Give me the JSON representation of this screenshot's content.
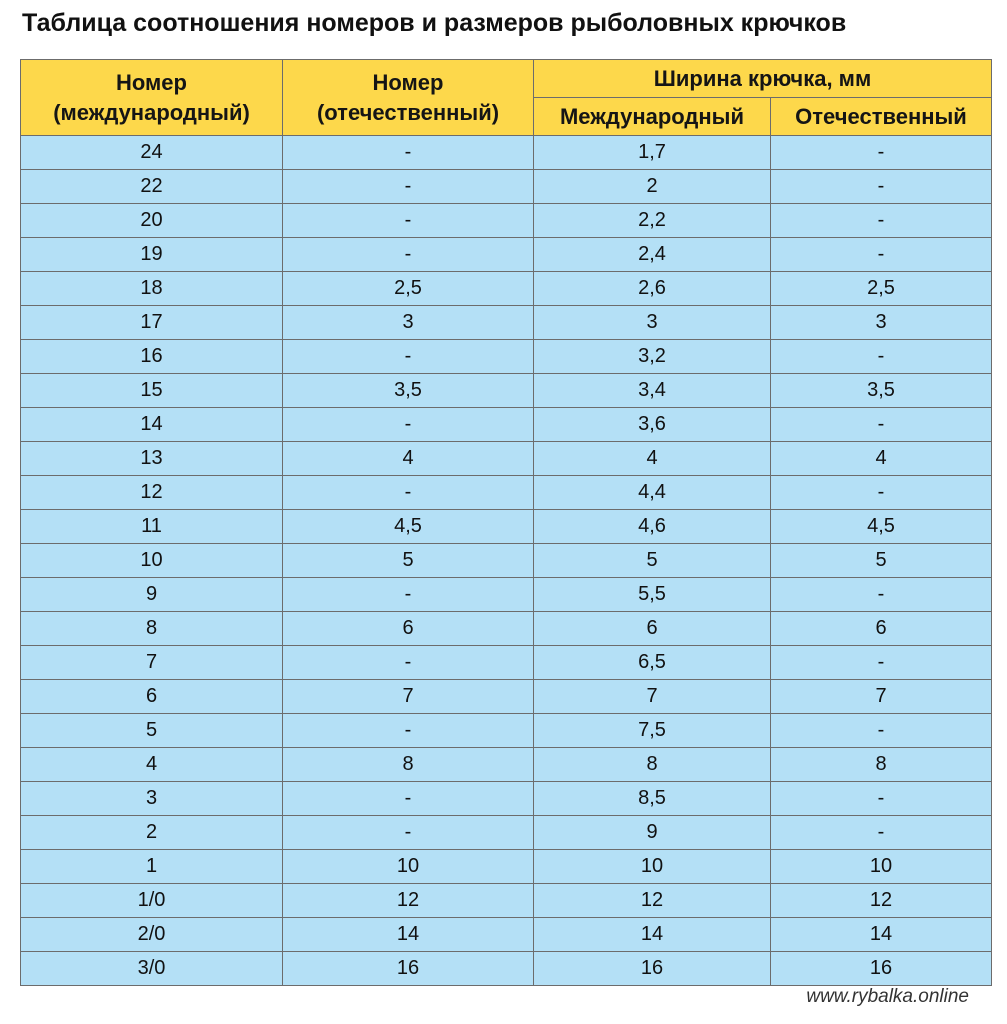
{
  "title": "Таблица соотношения номеров и размеров рыболовных крючков",
  "table": {
    "headers": {
      "col1_line1": "Номер",
      "col1_line2": "(международный)",
      "col2_line1": "Номер",
      "col2_line2": "(отечественный)",
      "group": "Ширина крючка, мм",
      "sub1": "Международный",
      "sub2": "Отечественный"
    },
    "rows": [
      [
        "24",
        "-",
        "1,7",
        "-"
      ],
      [
        "22",
        "-",
        "2",
        "-"
      ],
      [
        "20",
        "-",
        "2,2",
        "-"
      ],
      [
        "19",
        "-",
        "2,4",
        "-"
      ],
      [
        "18",
        "2,5",
        "2,6",
        "2,5"
      ],
      [
        "17",
        "3",
        "3",
        "3"
      ],
      [
        "16",
        "-",
        "3,2",
        "-"
      ],
      [
        "15",
        "3,5",
        "3,4",
        "3,5"
      ],
      [
        "14",
        "-",
        "3,6",
        "-"
      ],
      [
        "13",
        "4",
        "4",
        "4"
      ],
      [
        "12",
        "-",
        "4,4",
        "-"
      ],
      [
        "11",
        "4,5",
        "4,6",
        "4,5"
      ],
      [
        "10",
        "5",
        "5",
        "5"
      ],
      [
        "9",
        "-",
        "5,5",
        "-"
      ],
      [
        "8",
        "6",
        "6",
        "6"
      ],
      [
        "7",
        "-",
        "6,5",
        "-"
      ],
      [
        "6",
        "7",
        "7",
        "7"
      ],
      [
        "5",
        "-",
        "7,5",
        "-"
      ],
      [
        "4",
        "8",
        "8",
        "8"
      ],
      [
        "3",
        "-",
        "8,5",
        "-"
      ],
      [
        "2",
        "-",
        "9",
        "-"
      ],
      [
        "1",
        "10",
        "10",
        "10"
      ],
      [
        "1/0",
        "12",
        "12",
        "12"
      ],
      [
        "2/0",
        "14",
        "14",
        "14"
      ],
      [
        "3/0",
        "16",
        "16",
        "16"
      ]
    ]
  },
  "watermark": "www.rybalka.online",
  "colors": {
    "header_bg": "#fdd84b",
    "row_bg": "#b4e0f6",
    "border": "#6c6c6c"
  }
}
